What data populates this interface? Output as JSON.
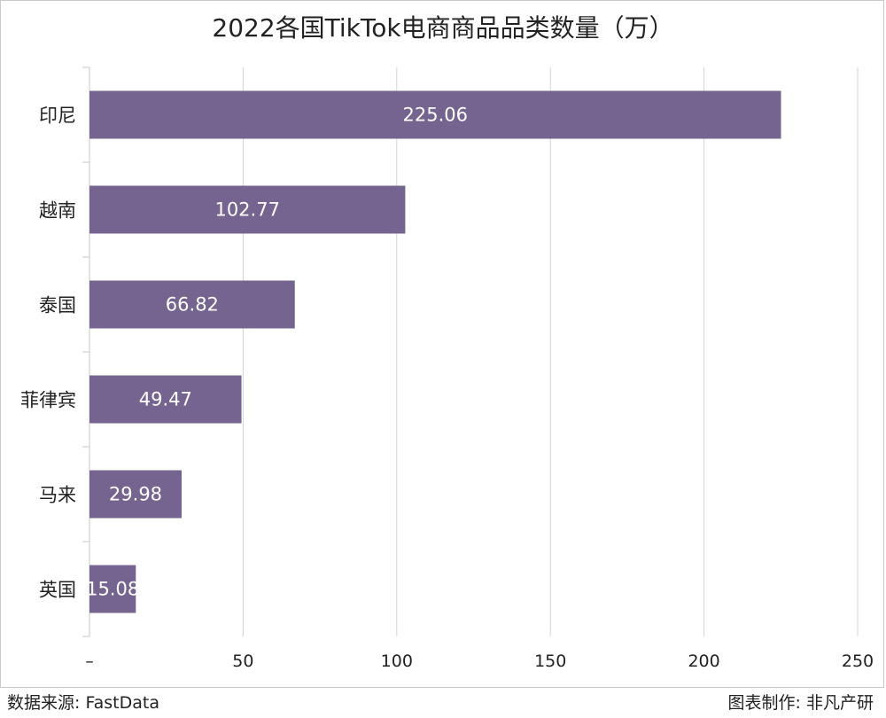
{
  "chart_data": {
    "type": "bar",
    "orientation": "horizontal",
    "title": "2022各国TikTok电商商品品类数量（万）",
    "categories": [
      "印尼",
      "越南",
      "泰国",
      "菲律宾",
      "马来",
      "英国"
    ],
    "values": [
      225.06,
      102.77,
      66.82,
      49.47,
      29.98,
      15.08
    ],
    "data_labels": [
      "225.06",
      "102.77",
      "66.82",
      "49.47",
      "29.98",
      "15.08"
    ],
    "xlim": [
      0,
      250
    ],
    "xticks": [
      0,
      50,
      100,
      150,
      200,
      250
    ],
    "xtick_labels": [
      "–",
      "50",
      "100",
      "150",
      "200",
      "250"
    ],
    "xlabel": "",
    "ylabel": "",
    "grid": "vertical",
    "legend": "none",
    "bar_color": "#75648f",
    "label_color": "#ffffff"
  },
  "footer": {
    "source": "数据来源: FastData",
    "credit": "图表制作: 非凡产研"
  }
}
